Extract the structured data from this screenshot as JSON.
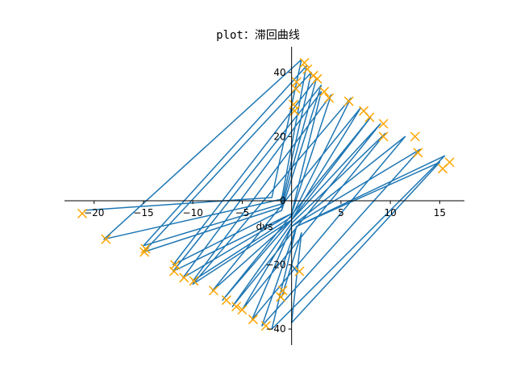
{
  "chart_data": {
    "type": "line",
    "title": "plot：滞回曲线",
    "xlabel": "dvs",
    "ylabel": "",
    "xlim": [
      -23,
      17.5
    ],
    "ylim": [
      -45,
      48
    ],
    "x_ticks": [
      -20,
      -15,
      -10,
      -5,
      0,
      5,
      10,
      15
    ],
    "x_tick_labels": [
      "−20",
      "−15",
      "−10",
      "−5",
      "",
      "5",
      "10",
      "15"
    ],
    "y_ticks": [
      -40,
      -20,
      0,
      20,
      40
    ],
    "y_tick_labels": [
      "−40",
      "−20",
      "0",
      "20",
      "40"
    ],
    "grid": false,
    "spines": "centered",
    "colors": {
      "line": "#1f77b4",
      "marker": "#ffa500"
    },
    "series": [
      {
        "marker": "none",
        "x": [
          -21,
          -2,
          1,
          -19,
          -1,
          1.5,
          -15,
          -1,
          2,
          -15,
          -1,
          2.5,
          -12,
          -1,
          3,
          -12,
          0,
          3,
          -11,
          0,
          4,
          -10,
          0,
          6,
          -10,
          0,
          7,
          -8,
          0,
          8,
          -7,
          0,
          9,
          -6,
          0,
          9.5,
          -5,
          0,
          11.5,
          -4,
          0,
          13,
          -3,
          0.5,
          15.5,
          -2,
          0.5,
          15,
          0,
          1,
          -1,
          0,
          0.5
        ],
        "y": [
          -3,
          1,
          44,
          -12,
          0.5,
          42,
          -14,
          -1,
          40,
          -16,
          -2,
          38,
          -20,
          -3,
          36,
          -22,
          -4,
          34,
          -24,
          -4,
          33,
          -25,
          -5,
          32,
          -26,
          -6,
          29,
          -28,
          -6,
          26,
          -31,
          -6,
          24,
          -33,
          -7,
          21,
          -34,
          -8,
          20,
          -37,
          -8,
          16,
          -39,
          -8,
          14,
          -40,
          -8,
          12,
          -38,
          -10,
          -30,
          -20,
          -22
        ]
      },
      {
        "marker": "x",
        "x": [
          -21.2,
          -18.8,
          -14.8,
          -14.9,
          -11.8,
          -11.9,
          -10.9,
          -9.9,
          -7.9,
          -6.6,
          -5.6,
          -5.0,
          -3.9,
          -2.6,
          -1.1,
          -0.9,
          1.3,
          1.6,
          2.2,
          2.6,
          3.3,
          3.8,
          5.8,
          7.3,
          7.9,
          9.3,
          9.3,
          12.5,
          12.8,
          15.3,
          16.0,
          0.2,
          0.3,
          0.5,
          0.4,
          0.8
        ],
        "y": [
          -4,
          -12,
          -15,
          -16,
          -20,
          -22,
          -24,
          -25,
          -28,
          -31,
          -33,
          -34,
          -37,
          -39,
          -30,
          -28,
          43,
          41,
          39,
          38,
          34,
          32,
          31,
          28,
          26,
          24,
          20,
          20,
          15,
          10,
          12,
          30,
          28,
          37,
          35,
          -22
        ]
      }
    ]
  }
}
